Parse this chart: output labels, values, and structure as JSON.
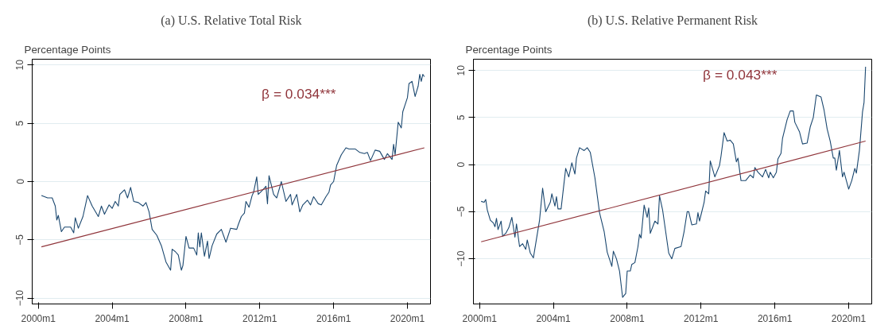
{
  "chart_data": [
    {
      "type": "line",
      "title": "(a) U.S. Relative Total Risk",
      "ylabel": "Percentage Points",
      "annotations": [
        "β = 0.034***"
      ],
      "grid": "y",
      "xlim": [
        "1999-09",
        "2021-04"
      ],
      "ylim": [
        -10.5,
        10.5
      ],
      "xticks": [
        {
          "value": "2000-01",
          "label": "2000m1"
        },
        {
          "value": "2004-01",
          "label": "2004m1"
        },
        {
          "value": "2008-01",
          "label": "2008m1"
        },
        {
          "value": "2012-01",
          "label": "2012m1"
        },
        {
          "value": "2016-01",
          "label": "2016m1"
        },
        {
          "value": "2020-01",
          "label": "2020m1"
        }
      ],
      "yticks": [
        -10,
        -5,
        0,
        5,
        10
      ],
      "series": [
        {
          "color": "#1a476f",
          "x": [
            "2000-03",
            "2000-05",
            "2000-07",
            "2000-10",
            "2000-12",
            "2001-01",
            "2001-02",
            "2001-04",
            "2001-06",
            "2001-10",
            "2001-12",
            "2002-01",
            "2002-03",
            "2002-06",
            "2002-09",
            "2002-12",
            "2003-04",
            "2003-06",
            "2003-08",
            "2003-11",
            "2004-01",
            "2004-03",
            "2004-05",
            "2004-06",
            "2004-09",
            "2004-11",
            "2005-01",
            "2005-03",
            "2005-06",
            "2005-09",
            "2005-11",
            "2006-01",
            "2006-03",
            "2006-06",
            "2006-09",
            "2006-12",
            "2007-03",
            "2007-04",
            "2007-06",
            "2007-08",
            "2007-10",
            "2007-11",
            "2008-01",
            "2008-03",
            "2008-06",
            "2008-08",
            "2008-09",
            "2008-10",
            "2008-11",
            "2009-01",
            "2009-03",
            "2009-04",
            "2009-06",
            "2009-09",
            "2009-12",
            "2010-03",
            "2010-06",
            "2010-10",
            "2010-11",
            "2011-01",
            "2011-03",
            "2011-04",
            "2011-06",
            "2011-08",
            "2011-09",
            "2011-11",
            "2011-12",
            "2012-03",
            "2012-05",
            "2012-06",
            "2012-07",
            "2012-10",
            "2012-12",
            "2013-03",
            "2013-06",
            "2013-09",
            "2013-10",
            "2014-01",
            "2014-03",
            "2014-05",
            "2014-08",
            "2014-10",
            "2014-12",
            "2015-03",
            "2015-05",
            "2015-08",
            "2015-10",
            "2015-11",
            "2016-01",
            "2016-03",
            "2016-06",
            "2016-09",
            "2016-11",
            "2017-03",
            "2017-06",
            "2017-09",
            "2017-11",
            "2018-01",
            "2018-04",
            "2018-07",
            "2018-10",
            "2018-12",
            "2019-03",
            "2019-04",
            "2019-05",
            "2019-07",
            "2019-09",
            "2019-10",
            "2020-01",
            "2020-02",
            "2020-04",
            "2020-06",
            "2020-08",
            "2020-09",
            "2020-10",
            "2020-11",
            "2020-12"
          ],
          "values": [
            -1.2,
            -1.3,
            -1.4,
            -1.4,
            -2.1,
            -3.3,
            -2.9,
            -4.3,
            -3.9,
            -3.9,
            -4.4,
            -3.1,
            -4.0,
            -3.0,
            -1.2,
            -2.1,
            -3.0,
            -2.1,
            -2.8,
            -2.0,
            -2.3,
            -1.7,
            -2.1,
            -1.1,
            -0.7,
            -1.4,
            -0.5,
            -1.7,
            -1.8,
            -2.1,
            -1.8,
            -2.6,
            -4.1,
            -4.6,
            -5.5,
            -6.9,
            -7.6,
            -5.8,
            -6.0,
            -6.3,
            -7.6,
            -7.2,
            -4.7,
            -5.7,
            -5.7,
            -6.3,
            -4.4,
            -5.6,
            -4.4,
            -6.4,
            -5.1,
            -6.6,
            -5.5,
            -4.5,
            -4.1,
            -5.2,
            -4.0,
            -4.1,
            -3.7,
            -3.0,
            -2.7,
            -1.7,
            -2.2,
            -1.2,
            -0.9,
            0.4,
            -1.1,
            -0.7,
            -0.4,
            -1.9,
            0.5,
            -1.1,
            -1.4,
            0.0,
            -1.7,
            -1.1,
            -2.0,
            -1.1,
            -2.6,
            -2.0,
            -1.6,
            -2.0,
            -1.3,
            -1.9,
            -2.0,
            -1.3,
            -0.9,
            -0.3,
            0.0,
            1.4,
            2.3,
            2.9,
            2.8,
            2.8,
            2.5,
            2.4,
            2.5,
            1.8,
            2.7,
            2.6,
            1.9,
            2.4,
            1.9,
            3.2,
            2.3,
            5.1,
            4.6,
            6.0,
            7.2,
            8.4,
            8.6,
            7.3,
            8.2,
            9.2,
            8.6,
            9.2,
            9.0
          ]
        },
        {
          "color": "#90353b",
          "x": [
            "2000-03",
            "2020-12"
          ],
          "values": [
            -5.6,
            2.9
          ]
        }
      ]
    },
    {
      "type": "line",
      "title": "(b) U.S. Relative Permanent Risk",
      "ylabel": "Percentage Points",
      "annotations": [
        "β = 0.043***"
      ],
      "grid": "y",
      "xlim": [
        "1999-09",
        "2021-04"
      ],
      "ylim": [
        -14.8,
        11.2
      ],
      "xticks": [
        {
          "value": "2000-01",
          "label": "2000m1"
        },
        {
          "value": "2004-01",
          "label": "2004m1"
        },
        {
          "value": "2008-01",
          "label": "2008m1"
        },
        {
          "value": "2012-01",
          "label": "2012m1"
        },
        {
          "value": "2016-01",
          "label": "2016m1"
        },
        {
          "value": "2020-01",
          "label": "2020m1"
        }
      ],
      "yticks": [
        -10,
        -5,
        0,
        5,
        10
      ],
      "series": [
        {
          "color": "#1a476f",
          "x": [
            "2000-02",
            "2000-04",
            "2000-05",
            "2000-06",
            "2000-08",
            "2000-10",
            "2000-11",
            "2000-12",
            "2001-01",
            "2001-03",
            "2001-04",
            "2001-06",
            "2001-08",
            "2001-10",
            "2001-12",
            "2002-01",
            "2002-03",
            "2002-05",
            "2002-07",
            "2002-08",
            "2002-10",
            "2002-12",
            "2003-04",
            "2003-06",
            "2003-08",
            "2003-11",
            "2003-12",
            "2004-02",
            "2004-03",
            "2004-04",
            "2004-06",
            "2004-09",
            "2004-11",
            "2005-01",
            "2005-03",
            "2005-04",
            "2005-06",
            "2005-09",
            "2005-11",
            "2006-01",
            "2006-04",
            "2006-07",
            "2006-10",
            "2006-12",
            "2007-03",
            "2007-04",
            "2007-06",
            "2007-08",
            "2007-10",
            "2007-12",
            "2008-01",
            "2008-03",
            "2008-04",
            "2008-06",
            "2008-08",
            "2008-09",
            "2008-10",
            "2008-12",
            "2009-02",
            "2009-03",
            "2009-04",
            "2009-07",
            "2009-09",
            "2009-10",
            "2009-12",
            "2010-02",
            "2010-04",
            "2010-06",
            "2010-08",
            "2010-12",
            "2011-02",
            "2011-04",
            "2011-05",
            "2011-07",
            "2011-10",
            "2011-11",
            "2011-12",
            "2012-03",
            "2012-04",
            "2012-06",
            "2012-07",
            "2012-10",
            "2013-01",
            "2013-02",
            "2013-04",
            "2013-06",
            "2013-08",
            "2013-10",
            "2013-12",
            "2014-01",
            "2014-03",
            "2014-06",
            "2014-09",
            "2014-11",
            "2014-12",
            "2015-02",
            "2015-05",
            "2015-07",
            "2015-09",
            "2015-10",
            "2015-12",
            "2016-02",
            "2016-03",
            "2016-05",
            "2016-06",
            "2016-09",
            "2016-11",
            "2017-01",
            "2017-02",
            "2017-05",
            "2017-07",
            "2017-10",
            "2017-12",
            "2018-02",
            "2018-04",
            "2018-07",
            "2018-09",
            "2018-11",
            "2019-01",
            "2019-03",
            "2019-04",
            "2019-05",
            "2019-07",
            "2019-09",
            "2019-10",
            "2020-01",
            "2020-03",
            "2020-05",
            "2020-06",
            "2020-08",
            "2020-10",
            "2020-11",
            "2020-12"
          ],
          "values": [
            -3.9,
            -4.0,
            -3.7,
            -4.8,
            -5.9,
            -6.2,
            -6.6,
            -5.7,
            -6.9,
            -6.0,
            -7.6,
            -7.3,
            -6.7,
            -5.6,
            -7.7,
            -6.3,
            -8.7,
            -8.4,
            -9.0,
            -8.0,
            -9.4,
            -9.9,
            -5.9,
            -2.5,
            -5.0,
            -4.0,
            -3.1,
            -4.4,
            -3.4,
            -4.7,
            -4.7,
            -0.4,
            -1.3,
            0.2,
            -1.0,
            0.7,
            1.8,
            1.5,
            1.8,
            1.3,
            -1.4,
            -5.1,
            -7.1,
            -9.3,
            -10.8,
            -9.2,
            -10.0,
            -11.3,
            -14.1,
            -13.7,
            -11.3,
            -11.3,
            -10.6,
            -10.4,
            -8.7,
            -7.4,
            -7.8,
            -4.3,
            -5.6,
            -4.6,
            -7.3,
            -6.0,
            -6.3,
            -3.3,
            -4.8,
            -7.1,
            -9.4,
            -10.0,
            -8.9,
            -8.7,
            -7.1,
            -5.0,
            -5.0,
            -6.4,
            -6.3,
            -5.1,
            -6.0,
            -4.0,
            -2.8,
            -3.1,
            0.4,
            -1.3,
            -0.1,
            0.9,
            3.4,
            2.5,
            2.6,
            2.2,
            0.3,
            0.7,
            -1.7,
            -1.7,
            -1.1,
            -1.4,
            -0.3,
            -0.8,
            -1.3,
            -0.5,
            -1.4,
            -0.8,
            -1.4,
            -0.8,
            0.6,
            1.2,
            2.8,
            4.8,
            5.7,
            5.7,
            4.5,
            3.5,
            2.2,
            2.3,
            4.0,
            5.0,
            7.4,
            7.2,
            5.8,
            3.8,
            2.5,
            0.7,
            0.7,
            -0.6,
            1.5,
            -1.3,
            -0.8,
            -2.6,
            -1.7,
            -0.4,
            -0.9,
            1.5,
            5.6,
            6.6,
            10.4
          ]
        },
        {
          "color": "#90353b",
          "x": [
            "2000-02",
            "2020-12"
          ],
          "values": [
            -8.2,
            2.5
          ]
        }
      ]
    }
  ]
}
